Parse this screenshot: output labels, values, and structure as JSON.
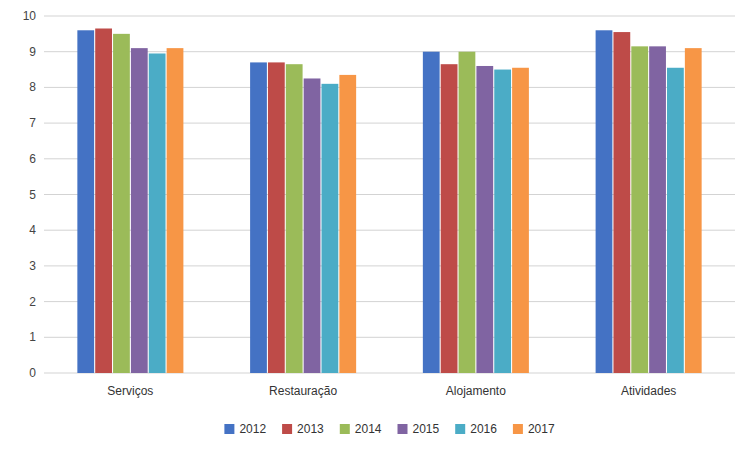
{
  "chart_data": {
    "type": "bar",
    "categories": [
      "Serviços",
      "Restauração",
      "Alojamento",
      "Atividades"
    ],
    "series": [
      {
        "name": "2012",
        "color": "#4472C4",
        "values": [
          9.6,
          8.7,
          9.0,
          9.6
        ]
      },
      {
        "name": "2013",
        "color": "#BE4B48",
        "values": [
          9.65,
          8.7,
          8.65,
          9.55
        ]
      },
      {
        "name": "2014",
        "color": "#9BBB59",
        "values": [
          9.5,
          8.65,
          9.0,
          9.15
        ]
      },
      {
        "name": "2015",
        "color": "#8064A2",
        "values": [
          9.1,
          8.25,
          8.6,
          9.15
        ]
      },
      {
        "name": "2016",
        "color": "#4BACC6",
        "values": [
          8.95,
          8.1,
          8.5,
          8.55
        ]
      },
      {
        "name": "2017",
        "color": "#F79646",
        "values": [
          9.1,
          8.35,
          8.55,
          9.1
        ]
      }
    ],
    "ylim": [
      0,
      10
    ],
    "yticks": [
      0,
      1,
      2,
      3,
      4,
      5,
      6,
      7,
      8,
      9,
      10
    ],
    "grid": true,
    "legend": "bottom"
  }
}
